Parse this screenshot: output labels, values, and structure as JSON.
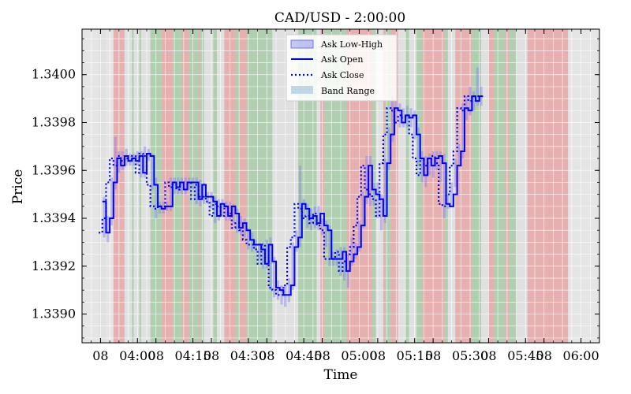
{
  "chart_data": {
    "type": "line",
    "title": "CAD/USD - 2:00:00",
    "xlabel": "Time",
    "ylabel": "Price",
    "ylim": [
      1.33888,
      1.34019
    ],
    "y_ticks": [
      1.339,
      1.3392,
      1.3394,
      1.3396,
      1.3398,
      1.34
    ],
    "y_tick_labels": [
      "1.3390",
      "1.3392",
      "1.3394",
      "1.3396",
      "1.3398",
      "1.3400"
    ],
    "x_range_minutes": [
      225,
      365
    ],
    "x_ticks": [
      {
        "minute": 230,
        "label": "08"
      },
      {
        "minute": 240,
        "label": "04:00"
      },
      {
        "minute": 245,
        "label": "08"
      },
      {
        "minute": 255,
        "label": "04:15"
      },
      {
        "minute": 260,
        "label": "08"
      },
      {
        "minute": 270,
        "label": "04:30"
      },
      {
        "minute": 275,
        "label": "08"
      },
      {
        "minute": 285,
        "label": "04:45"
      },
      {
        "minute": 290,
        "label": "08"
      },
      {
        "minute": 300,
        "label": "05:00"
      },
      {
        "minute": 305,
        "label": "08"
      },
      {
        "minute": 315,
        "label": "05:15"
      },
      {
        "minute": 320,
        "label": "08"
      },
      {
        "minute": 330,
        "label": "05:30"
      },
      {
        "minute": 335,
        "label": "08"
      },
      {
        "minute": 345,
        "label": "05:45"
      },
      {
        "minute": 350,
        "label": "08"
      },
      {
        "minute": 360,
        "label": "06:00"
      }
    ],
    "grid": true,
    "legend_position": "top-center",
    "legend": [
      "Ask Low-High",
      "Ask Open",
      "Ask Close",
      "Band Range"
    ],
    "colors": {
      "ask_open": "#0000ff",
      "ask_close": "#0000ff",
      "low_high": "#8080ee",
      "band_range": "#aac8dd",
      "band_red": "#e88c8c",
      "band_green": "#8cc08c",
      "band_gray": "#dcdcdc",
      "plot_bg": "#e5e5e5"
    },
    "x_start_time": "03:51",
    "step_minutes": 1,
    "series": [
      {
        "name": "Ask Open",
        "style": "solid",
        "values": [
          1.33947,
          1.33934,
          1.3394,
          1.33955,
          1.33965,
          1.33962,
          1.33966,
          1.33964,
          1.33965,
          1.33964,
          1.33966,
          1.33959,
          1.33967,
          1.33966,
          1.33954,
          1.33945,
          1.33944,
          1.33945,
          1.33945,
          1.33955,
          1.33953,
          1.33955,
          1.33952,
          1.33955,
          1.33955,
          1.33955,
          1.33948,
          1.33954,
          1.33949,
          1.33949,
          1.33947,
          1.33941,
          1.33946,
          1.33945,
          1.33941,
          1.33945,
          1.33942,
          1.33936,
          1.33938,
          1.33935,
          1.33931,
          1.33929,
          1.33929,
          1.33927,
          1.33921,
          1.33929,
          1.33922,
          1.33911,
          1.3391,
          1.33908,
          1.33908,
          1.33912,
          1.33928,
          1.33932,
          1.33946,
          1.33944,
          1.3394,
          1.33941,
          1.33938,
          1.33942,
          1.33937,
          1.33935,
          1.33923,
          1.33923,
          1.33923,
          1.33926,
          1.33918,
          1.33922,
          1.33925,
          1.33928,
          1.33937,
          1.33949,
          1.33962,
          1.33952,
          1.3395,
          1.33948,
          1.33941,
          1.33963,
          1.33975,
          1.33986,
          1.33985,
          1.3398,
          1.33983,
          1.33982,
          1.33983,
          1.33975,
          1.33965,
          1.33958,
          1.33965,
          1.33962,
          1.33965,
          1.33966,
          1.33963,
          1.33946,
          1.33945,
          1.3395,
          1.33962,
          1.33968,
          1.33986,
          1.33985,
          1.33991,
          1.33989,
          1.33991
        ],
        "x_start": "03:51"
      },
      {
        "name": "Ask Close",
        "style": "dotted",
        "values": [
          1.33934,
          1.3394,
          1.33955,
          1.33965,
          1.33962,
          1.33966,
          1.33964,
          1.33965,
          1.33964,
          1.33966,
          1.33959,
          1.33967,
          1.33966,
          1.33954,
          1.33945,
          1.33944,
          1.33945,
          1.33945,
          1.33955,
          1.33953,
          1.33955,
          1.33952,
          1.33955,
          1.33955,
          1.33955,
          1.33948,
          1.33954,
          1.33949,
          1.33949,
          1.33947,
          1.33941,
          1.33946,
          1.33945,
          1.33941,
          1.33945,
          1.33942,
          1.33936,
          1.33938,
          1.33935,
          1.33931,
          1.33929,
          1.33929,
          1.33927,
          1.33921,
          1.33929,
          1.33922,
          1.33911,
          1.3391,
          1.33908,
          1.33908,
          1.33912,
          1.33928,
          1.33932,
          1.33946,
          1.33944,
          1.3394,
          1.33941,
          1.33938,
          1.33942,
          1.33937,
          1.33935,
          1.33923,
          1.33923,
          1.33923,
          1.33926,
          1.33918,
          1.33922,
          1.33925,
          1.33928,
          1.33937,
          1.33949,
          1.33962,
          1.33952,
          1.3395,
          1.33948,
          1.33941,
          1.33963,
          1.33975,
          1.33986,
          1.33985,
          1.3398,
          1.33983,
          1.33982,
          1.33983,
          1.33975,
          1.33965,
          1.33958,
          1.33965,
          1.33962,
          1.33965,
          1.33966,
          1.33963,
          1.33946,
          1.33945,
          1.3395,
          1.33962,
          1.33968,
          1.33986,
          1.33985,
          1.33991,
          1.33989,
          1.33991,
          1.33991
        ],
        "x_start": "03:50"
      },
      {
        "name": "Ask Low-High",
        "style": "bar",
        "low": [
          1.33932,
          1.3393,
          1.33937,
          1.33952,
          1.33959,
          1.3396,
          1.33962,
          1.33962,
          1.33962,
          1.33962,
          1.33957,
          1.33957,
          1.33964,
          1.33952,
          1.3394,
          1.33942,
          1.33942,
          1.33943,
          1.33943,
          1.3395,
          1.3395,
          1.3395,
          1.3395,
          1.33952,
          1.33952,
          1.33946,
          1.33945,
          1.33946,
          1.33946,
          1.33944,
          1.33938,
          1.33939,
          1.33941,
          1.33939,
          1.33939,
          1.33938,
          1.33934,
          1.33933,
          1.33932,
          1.33927,
          1.33926,
          1.33927,
          1.33923,
          1.33919,
          1.33919,
          1.3391,
          1.33907,
          1.33906,
          1.33904,
          1.33903,
          1.33905,
          1.3391,
          1.33926,
          1.33928,
          1.3394,
          1.33936,
          1.33935,
          1.33936,
          1.33935,
          1.33933,
          1.33928,
          1.3392,
          1.3392,
          1.3392,
          1.33916,
          1.33914,
          1.33911,
          1.3392,
          1.33923,
          1.33926,
          1.33936,
          1.33946,
          1.33945,
          1.33945,
          1.3394,
          1.33935,
          1.33938,
          1.3396,
          1.33972,
          1.33981,
          1.33978,
          1.33978,
          1.33978,
          1.33978,
          1.33973,
          1.33962,
          1.33955,
          1.33953,
          1.33958,
          1.33957,
          1.3396,
          1.33955,
          1.3394,
          1.33944,
          1.33945,
          1.33953,
          1.33962,
          1.33965,
          1.33981,
          1.33983,
          1.33985,
          1.33987,
          1.33987
        ],
        "high": [
          1.33949,
          1.33941,
          1.33957,
          1.33974,
          1.33968,
          1.33968,
          1.33969,
          1.33967,
          1.33967,
          1.33968,
          1.33968,
          1.3397,
          1.33969,
          1.33967,
          1.33957,
          1.33947,
          1.33947,
          1.33947,
          1.33957,
          1.33957,
          1.33957,
          1.33957,
          1.33957,
          1.33957,
          1.33957,
          1.33957,
          1.33956,
          1.33955,
          1.33951,
          1.33951,
          1.33949,
          1.33948,
          1.33948,
          1.33947,
          1.33947,
          1.33946,
          1.33944,
          1.33941,
          1.3394,
          1.33936,
          1.33934,
          1.33931,
          1.3393,
          1.3393,
          1.33931,
          1.33932,
          1.33924,
          1.33914,
          1.33912,
          1.33912,
          1.33915,
          1.3393,
          1.33935,
          1.33962,
          1.33948,
          1.33946,
          1.33944,
          1.33945,
          1.33945,
          1.3394,
          1.33939,
          1.33937,
          1.33926,
          1.33927,
          1.33928,
          1.33928,
          1.33925,
          1.33932,
          1.3393,
          1.33939,
          1.33951,
          1.33966,
          1.33966,
          1.33955,
          1.33955,
          1.3395,
          1.33965,
          1.33978,
          1.33991,
          1.33989,
          1.33988,
          1.33986,
          1.33987,
          1.33986,
          1.33985,
          1.33978,
          1.33968,
          1.33966,
          1.33967,
          1.33968,
          1.33968,
          1.33968,
          1.33967,
          1.3395,
          1.33955,
          1.33965,
          1.33971,
          1.33988,
          1.33991,
          1.33995,
          1.33993,
          1.34003,
          1.33995
        ],
        "x_start": "03:51"
      },
      {
        "name": "Band Range",
        "style": "band",
        "bands": [
          {
            "start": 229.5,
            "end": 231.5,
            "color": "gray"
          },
          {
            "start": 233.5,
            "end": 236.5,
            "color": "red"
          },
          {
            "start": 236.5,
            "end": 238.5,
            "color": "gray"
          },
          {
            "start": 238.5,
            "end": 239.0,
            "color": "green"
          },
          {
            "start": 239.0,
            "end": 240.5,
            "color": "gray"
          },
          {
            "start": 240.5,
            "end": 241.0,
            "color": "green"
          },
          {
            "start": 241.0,
            "end": 243.5,
            "color": "gray"
          },
          {
            "start": 243.5,
            "end": 246.5,
            "color": "green"
          },
          {
            "start": 246.5,
            "end": 249.5,
            "color": "red"
          },
          {
            "start": 249.5,
            "end": 252.0,
            "color": "green"
          },
          {
            "start": 252.0,
            "end": 254.0,
            "color": "red"
          },
          {
            "start": 254.0,
            "end": 256.5,
            "color": "green"
          },
          {
            "start": 256.5,
            "end": 257.0,
            "color": "red"
          },
          {
            "start": 257.0,
            "end": 258.0,
            "color": "green"
          },
          {
            "start": 258.0,
            "end": 260.5,
            "color": "gray"
          },
          {
            "start": 260.5,
            "end": 261.5,
            "color": "green"
          },
          {
            "start": 261.5,
            "end": 263.5,
            "color": "gray"
          },
          {
            "start": 263.5,
            "end": 266.5,
            "color": "red"
          },
          {
            "start": 266.5,
            "end": 267.5,
            "color": "green"
          },
          {
            "start": 267.5,
            "end": 269.5,
            "color": "red"
          },
          {
            "start": 269.5,
            "end": 276.5,
            "color": "green"
          },
          {
            "start": 276.5,
            "end": 283.5,
            "color": "gray"
          },
          {
            "start": 283.5,
            "end": 288.5,
            "color": "green"
          },
          {
            "start": 288.5,
            "end": 289.5,
            "color": "gray"
          },
          {
            "start": 289.5,
            "end": 290.5,
            "color": "red"
          },
          {
            "start": 290.5,
            "end": 296.5,
            "color": "green"
          },
          {
            "start": 296.5,
            "end": 303.5,
            "color": "red"
          },
          {
            "start": 303.5,
            "end": 304.5,
            "color": "green"
          },
          {
            "start": 304.5,
            "end": 306.5,
            "color": "gray"
          },
          {
            "start": 306.5,
            "end": 307.0,
            "color": "red"
          },
          {
            "start": 307.0,
            "end": 308.5,
            "color": "green"
          },
          {
            "start": 308.5,
            "end": 310.5,
            "color": "red"
          },
          {
            "start": 310.5,
            "end": 312.5,
            "color": "gray"
          },
          {
            "start": 312.5,
            "end": 313.5,
            "color": "green"
          },
          {
            "start": 313.5,
            "end": 315.5,
            "color": "gray"
          },
          {
            "start": 315.5,
            "end": 317.0,
            "color": "green"
          },
          {
            "start": 317.0,
            "end": 323.0,
            "color": "red"
          },
          {
            "start": 323.0,
            "end": 324.0,
            "color": "green"
          },
          {
            "start": 324.0,
            "end": 326.0,
            "color": "gray"
          },
          {
            "start": 326.0,
            "end": 330.5,
            "color": "red"
          },
          {
            "start": 330.5,
            "end": 333.0,
            "color": "green"
          },
          {
            "start": 333.0,
            "end": 335.0,
            "color": "gray"
          },
          {
            "start": 335.0,
            "end": 336.5,
            "color": "red"
          },
          {
            "start": 336.5,
            "end": 339.5,
            "color": "green"
          },
          {
            "start": 339.5,
            "end": 340.5,
            "color": "red"
          },
          {
            "start": 340.5,
            "end": 342.5,
            "color": "green"
          },
          {
            "start": 342.5,
            "end": 345.5,
            "color": "gray"
          },
          {
            "start": 345.5,
            "end": 356.5,
            "color": "red"
          }
        ]
      }
    ]
  }
}
